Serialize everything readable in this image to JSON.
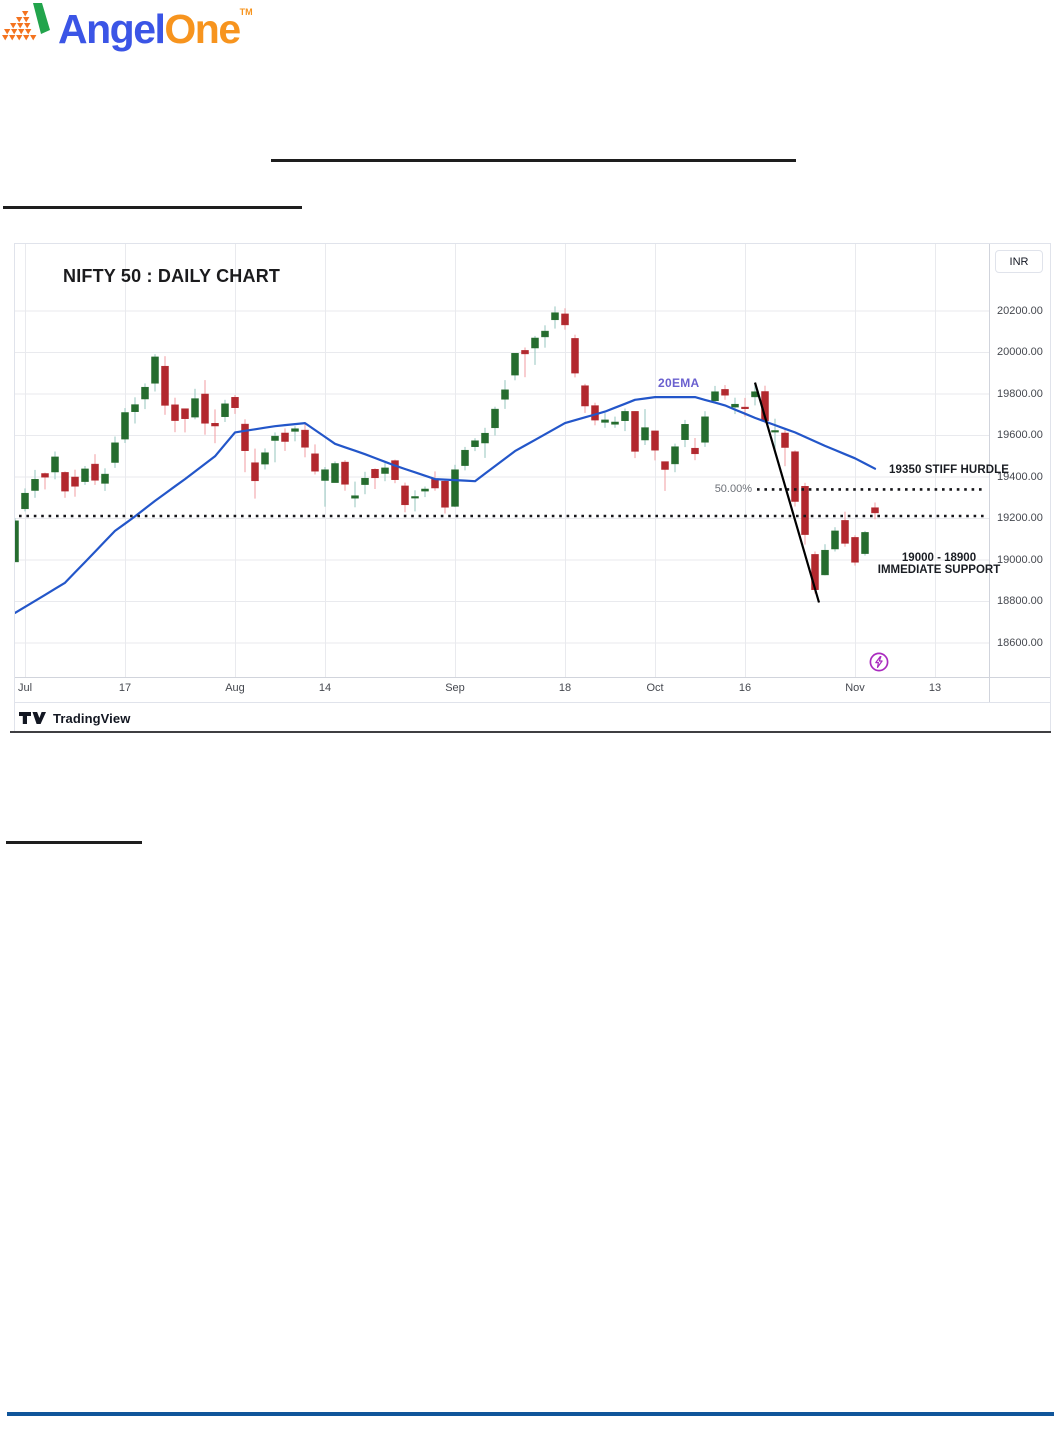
{
  "colors": {
    "up_body": "#256c2e",
    "up_wick": "#a6cfc9",
    "down_body": "#b2282e",
    "down_wick": "#f2acb0",
    "ema_line": "#2356c9",
    "ema_label": "#6a60cf",
    "grid": "#e9eaee",
    "axis_text": "#45484f",
    "dotted_level": "#16161a",
    "trendline": "#000000",
    "bolt_icon": "#aa2bbf",
    "axis_border": "#d1d4dc",
    "frame_border": "#e0e3eb",
    "brand_blue": "#3b55e6",
    "brand_orange": "#f7941e",
    "brand_green": "#22a44c",
    "attribution_text": "#131722",
    "bottom_rule_blue": "#10559a"
  },
  "header": {
    "brand_first": "Angel",
    "brand_second": "One",
    "trademark": "TM"
  },
  "chart": {
    "title": "NIFTY 50 : DAILY CHART",
    "currency_button": "INR",
    "ema_label": "20EMA",
    "fib_label": "50.00%",
    "hurdle_label": "19350 STIFF HURDLE",
    "support_label_1": "19000 - 18900",
    "support_label_2": "IMMEDIATE SUPPORT",
    "attribution": "TradingView"
  },
  "chart_data": {
    "type": "candlestick",
    "title": "NIFTY 50 : DAILY CHART",
    "currency": "INR",
    "ylim": [
      18450,
      20520
    ],
    "grid": true,
    "y_ticks": [
      20200,
      20000,
      19800,
      19600,
      19400,
      19200,
      19000,
      18800,
      18600
    ],
    "y_tick_format": "0.00",
    "x_ticks": [
      {
        "label": "Jul",
        "i": 1
      },
      {
        "label": "17",
        "i": 11
      },
      {
        "label": "Aug",
        "i": 22
      },
      {
        "label": "14",
        "i": 31
      },
      {
        "label": "Sep",
        "i": 44
      },
      {
        "label": "18",
        "i": 55
      },
      {
        "label": "Oct",
        "i": 64
      },
      {
        "label": "16",
        "i": 73
      },
      {
        "label": "Nov",
        "i": 84
      },
      {
        "label": "13",
        "i": 92
      }
    ],
    "candle_fields": [
      "date",
      "open",
      "high",
      "low",
      "close"
    ],
    "candles": [
      [
        "Jun 30",
        18991,
        19201,
        18991,
        19189
      ],
      [
        "Jul 3",
        19247,
        19345,
        19234,
        19322
      ],
      [
        "Jul 4",
        19335,
        19434,
        19300,
        19389
      ],
      [
        "Jul 5",
        19417,
        19421,
        19340,
        19399
      ],
      [
        "Jul 6",
        19424,
        19523,
        19389,
        19497
      ],
      [
        "Jul 7",
        19422,
        19427,
        19300,
        19332
      ],
      [
        "Jul 10",
        19400,
        19435,
        19305,
        19355
      ],
      [
        "Jul 11",
        19378,
        19453,
        19362,
        19439
      ],
      [
        "Jul 12",
        19462,
        19510,
        19362,
        19384
      ],
      [
        "Jul 13",
        19369,
        19442,
        19333,
        19414
      ],
      [
        "Jul 14",
        19470,
        19595,
        19444,
        19565
      ],
      [
        "Jul 17",
        19583,
        19732,
        19564,
        19711
      ],
      [
        "Jul 18",
        19715,
        19784,
        19658,
        19749
      ],
      [
        "Jul 19",
        19776,
        19851,
        19727,
        19833
      ],
      [
        "Jul 20",
        19852,
        19992,
        19812,
        19979
      ],
      [
        "Jul 21",
        19934,
        19982,
        19700,
        19745
      ],
      [
        "Jul 24",
        19748,
        19782,
        19616,
        19672
      ],
      [
        "Jul 25",
        19729,
        19730,
        19615,
        19681
      ],
      [
        "Jul 26",
        19689,
        19825,
        19678,
        19778
      ],
      [
        "Jul 27",
        19800,
        19867,
        19604,
        19659
      ],
      [
        "Jul 28",
        19659,
        19726,
        19563,
        19646
      ],
      [
        "Jul 31",
        19691,
        19772,
        19665,
        19753
      ],
      [
        "Aug 1",
        19784,
        19795,
        19704,
        19734
      ],
      [
        "Aug 2",
        19655,
        19678,
        19423,
        19527
      ],
      [
        "Aug 3",
        19469,
        19537,
        19296,
        19382
      ],
      [
        "Aug 4",
        19462,
        19538,
        19436,
        19517
      ],
      [
        "Aug 7",
        19576,
        19615,
        19471,
        19597
      ],
      [
        "Aug 8",
        19612,
        19634,
        19526,
        19571
      ],
      [
        "Aug 9",
        19620,
        19645,
        19572,
        19633
      ],
      [
        "Aug 10",
        19626,
        19655,
        19495,
        19543
      ],
      [
        "Aug 11",
        19512,
        19557,
        19412,
        19428
      ],
      [
        "Aug 14",
        19383,
        19448,
        19257,
        19435
      ],
      [
        "Aug 16",
        19373,
        19475,
        19373,
        19465
      ],
      [
        "Aug 17",
        19472,
        19481,
        19334,
        19365
      ],
      [
        "Aug 18",
        19298,
        19378,
        19254,
        19310
      ],
      [
        "Aug 21",
        19363,
        19425,
        19317,
        19394
      ],
      [
        "Aug 22",
        19437,
        19442,
        19342,
        19396
      ],
      [
        "Aug 23",
        19417,
        19467,
        19380,
        19444
      ],
      [
        "Aug 24",
        19479,
        19484,
        19370,
        19387
      ],
      [
        "Aug 25",
        19357,
        19373,
        19230,
        19266
      ],
      [
        "Aug 28",
        19306,
        19336,
        19234,
        19306
      ],
      [
        "Aug 29",
        19332,
        19354,
        19303,
        19342
      ],
      [
        "Aug 30",
        19389,
        19427,
        19334,
        19347
      ],
      [
        "Aug 31",
        19380,
        19388,
        19224,
        19254
      ],
      [
        "Sep 1",
        19258,
        19459,
        19255,
        19435
      ],
      [
        "Sep 4",
        19455,
        19545,
        19432,
        19529
      ],
      [
        "Sep 5",
        19546,
        19587,
        19525,
        19575
      ],
      [
        "Sep 6",
        19564,
        19637,
        19492,
        19611
      ],
      [
        "Sep 7",
        19637,
        19739,
        19600,
        19727
      ],
      [
        "Sep 8",
        19774,
        19867,
        19728,
        19820
      ],
      [
        "Sep 11",
        19891,
        19996,
        19866,
        19996
      ],
      [
        "Sep 12",
        20010,
        20024,
        19881,
        19993
      ],
      [
        "Sep 13",
        20022,
        20080,
        19940,
        20070
      ],
      [
        "Sep 14",
        20075,
        20131,
        20023,
        20103
      ],
      [
        "Sep 15",
        20158,
        20222,
        20115,
        20192
      ],
      [
        "Sep 18",
        20186,
        20213,
        20110,
        20133
      ],
      [
        "Sep 20",
        20068,
        20086,
        19880,
        19901
      ],
      [
        "Sep 21",
        19840,
        19849,
        19709,
        19742
      ],
      [
        "Sep 22",
        19744,
        19758,
        19649,
        19674
      ],
      [
        "Sep 25",
        19663,
        19708,
        19637,
        19675
      ],
      [
        "Sep 26",
        19654,
        19691,
        19637,
        19665
      ],
      [
        "Sep 27",
        19671,
        19730,
        19621,
        19716
      ],
      [
        "Sep 28",
        19716,
        19717,
        19491,
        19523
      ],
      [
        "Sep 29",
        19578,
        19727,
        19554,
        19638
      ],
      [
        "Oct 3",
        19622,
        19623,
        19480,
        19529
      ],
      [
        "Oct 4",
        19474,
        19474,
        19333,
        19436
      ],
      [
        "Oct 5",
        19463,
        19561,
        19423,
        19546
      ],
      [
        "Oct 6",
        19580,
        19675,
        19544,
        19654
      ],
      [
        "Oct 9",
        19539,
        19588,
        19481,
        19512
      ],
      [
        "Oct 10",
        19567,
        19717,
        19545,
        19690
      ],
      [
        "Oct 11",
        19767,
        19839,
        19756,
        19811
      ],
      [
        "Oct 12",
        19822,
        19843,
        19772,
        19794
      ],
      [
        "Oct 13",
        19737,
        19782,
        19703,
        19751
      ],
      [
        "Oct 16",
        19737,
        19781,
        19691,
        19731
      ],
      [
        "Oct 17",
        19786,
        19849,
        19745,
        19811
      ],
      [
        "Oct 18",
        19812,
        19840,
        19659,
        19671
      ],
      [
        "Oct 19",
        19621,
        19681,
        19512,
        19624
      ],
      [
        "Oct 20",
        19612,
        19626,
        19452,
        19542
      ],
      [
        "Oct 23",
        19522,
        19528,
        19258,
        19282
      ],
      [
        "Oct 25",
        19355,
        19372,
        19074,
        19122
      ],
      [
        "Oct 26",
        19027,
        19041,
        18838,
        18857
      ],
      [
        "Oct 27",
        18928,
        19076,
        18926,
        19047
      ],
      [
        "Oct 30",
        19053,
        19158,
        19041,
        19140
      ],
      [
        "Oct 31",
        19191,
        19233,
        19064,
        19080
      ],
      [
        "Nov 1",
        19109,
        19119,
        18973,
        18989
      ],
      [
        "Nov 2",
        19031,
        19140,
        19021,
        19133
      ],
      [
        "Nov 3",
        19252,
        19277,
        19196,
        19227
      ]
    ],
    "indicator": {
      "name": "20EMA",
      "anchors_index_value": [
        [
          0,
          18745
        ],
        [
          5,
          18890
        ],
        [
          10,
          19140
        ],
        [
          12,
          19210
        ],
        [
          14,
          19285
        ],
        [
          17,
          19390
        ],
        [
          20,
          19500
        ],
        [
          22,
          19615
        ],
        [
          26,
          19645
        ],
        [
          29,
          19660
        ],
        [
          32,
          19560
        ],
        [
          35,
          19510
        ],
        [
          38,
          19455
        ],
        [
          42,
          19390
        ],
        [
          46,
          19380
        ],
        [
          50,
          19525
        ],
        [
          55,
          19660
        ],
        [
          59,
          19715
        ],
        [
          62,
          19772
        ],
        [
          64,
          19785
        ],
        [
          68,
          19785
        ],
        [
          71,
          19745
        ],
        [
          74,
          19685
        ],
        [
          78,
          19615
        ],
        [
          81,
          19550
        ],
        [
          84,
          19490
        ],
        [
          86,
          19440
        ]
      ]
    },
    "levels": [
      {
        "price": 19340,
        "style": "dotted",
        "from_i": 74.2,
        "to_i": 97,
        "label_left": "50.00%",
        "label_right": "19350 STIFF HURDLE"
      },
      {
        "price": 19212,
        "style": "dotted",
        "from_i": 0.4,
        "to_i": 97
      }
    ],
    "trendline": {
      "from_i": 74,
      "from_price": 19855,
      "to_i": 80.4,
      "to_price": 18795
    },
    "annotations": [
      "19350 STIFF HURDLE",
      "50.00%",
      "19000 - 18900 IMMEDIATE SUPPORT",
      "20EMA"
    ]
  }
}
